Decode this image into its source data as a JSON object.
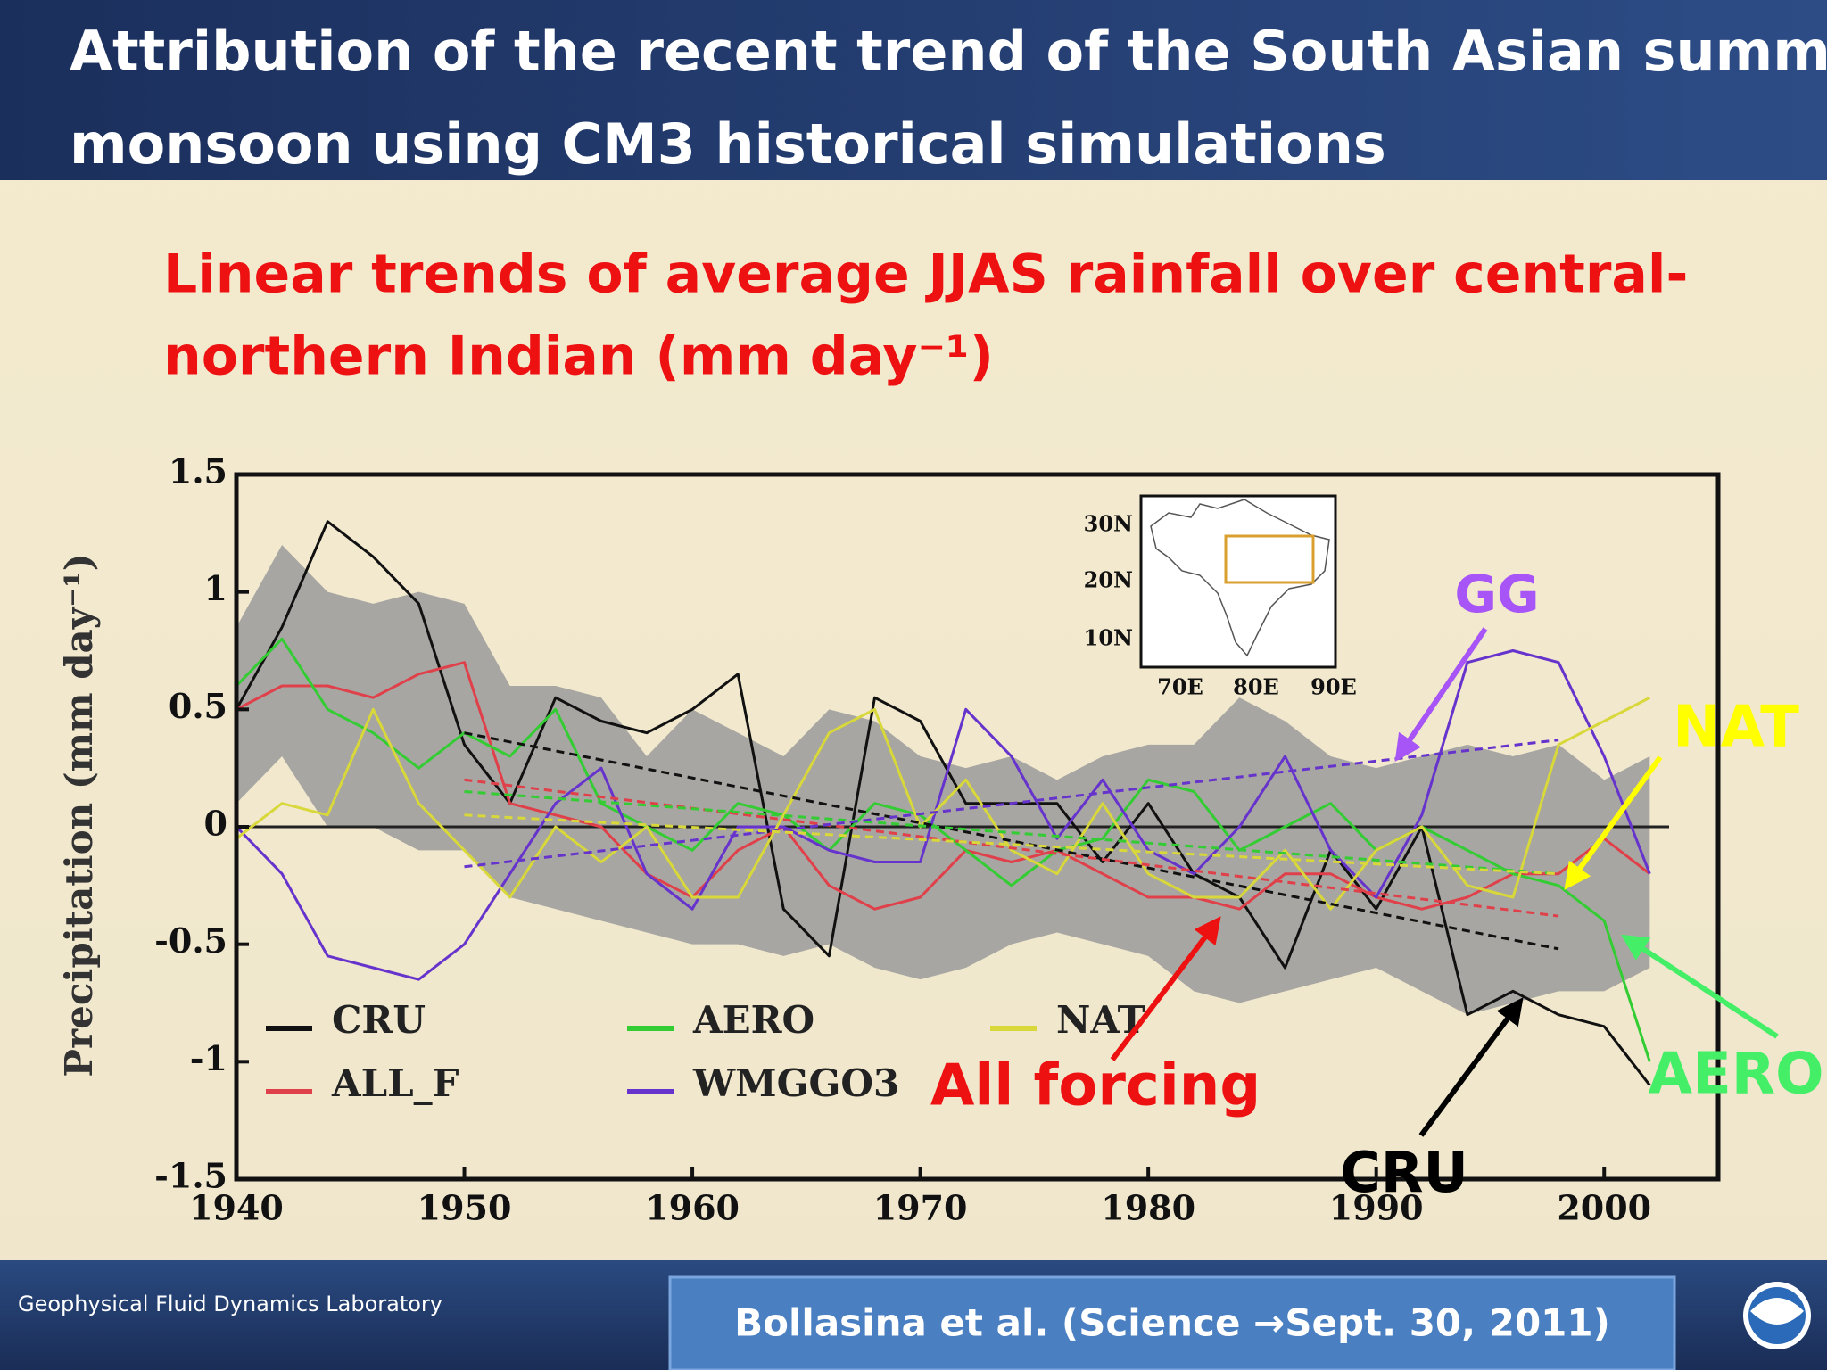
{
  "header": {
    "title_lines": [
      "Attribution of the recent trend of the South Asian summer",
      "monsoon using CM3 historical simulations"
    ]
  },
  "chart_data": {
    "type": "line",
    "title_lines": [
      "Linear trends of average JJAS rainfall over central-",
      "northern Indian (mm day⁻¹)"
    ],
    "ylabel": "Precipitation (mm day⁻¹)",
    "xlim": [
      1940,
      2005
    ],
    "ylim": [
      -1.5,
      1.5
    ],
    "xticks": [
      1940,
      1950,
      1960,
      1970,
      1980,
      1990,
      2000
    ],
    "yticks": [
      1.5,
      1,
      0.5,
      0,
      -0.5,
      -1,
      -1.5
    ],
    "x": [
      1940,
      1942,
      1944,
      1946,
      1948,
      1950,
      1952,
      1954,
      1956,
      1958,
      1960,
      1962,
      1964,
      1966,
      1968,
      1970,
      1972,
      1974,
      1976,
      1978,
      1980,
      1982,
      1984,
      1986,
      1988,
      1990,
      1992,
      1994,
      1996,
      1998,
      2000,
      2002
    ],
    "band": {
      "color": "#9a9a9a",
      "upper": [
        0.85,
        1.2,
        1.0,
        0.95,
        1.0,
        0.95,
        0.6,
        0.6,
        0.55,
        0.3,
        0.5,
        0.4,
        0.3,
        0.5,
        0.45,
        0.3,
        0.25,
        0.3,
        0.2,
        0.3,
        0.35,
        0.35,
        0.55,
        0.45,
        0.3,
        0.25,
        0.3,
        0.35,
        0.3,
        0.35,
        0.2,
        0.3
      ],
      "lower": [
        0.1,
        0.3,
        0.0,
        0.0,
        -0.1,
        -0.1,
        -0.3,
        -0.35,
        -0.4,
        -0.45,
        -0.5,
        -0.5,
        -0.55,
        -0.5,
        -0.6,
        -0.65,
        -0.6,
        -0.5,
        -0.45,
        -0.5,
        -0.55,
        -0.7,
        -0.75,
        -0.7,
        -0.65,
        -0.6,
        -0.7,
        -0.8,
        -0.75,
        -0.7,
        -0.7,
        -0.6
      ]
    },
    "trend_x": [
      1950,
      1998
    ],
    "series": [
      {
        "name": "CRU",
        "color": "#111111",
        "trend": [
          0.4,
          -0.52
        ],
        "values": [
          0.5,
          0.85,
          1.3,
          1.15,
          0.95,
          0.35,
          0.1,
          0.55,
          0.45,
          0.4,
          0.5,
          0.65,
          -0.35,
          -0.55,
          0.55,
          0.45,
          0.1,
          0.1,
          0.1,
          -0.15,
          0.1,
          -0.2,
          -0.3,
          -0.6,
          -0.1,
          -0.35,
          0.0,
          -0.8,
          -0.7,
          -0.8,
          -0.85,
          -1.1
        ]
      },
      {
        "name": "ALL_F",
        "color": "#e0404a",
        "trend": [
          0.2,
          -0.38
        ],
        "values": [
          0.5,
          0.6,
          0.6,
          0.55,
          0.65,
          0.7,
          0.1,
          0.05,
          0.0,
          -0.2,
          -0.3,
          -0.1,
          0.0,
          -0.25,
          -0.35,
          -0.3,
          -0.1,
          -0.15,
          -0.1,
          -0.2,
          -0.3,
          -0.3,
          -0.35,
          -0.2,
          -0.2,
          -0.3,
          -0.35,
          -0.3,
          -0.2,
          -0.2,
          -0.05,
          -0.2
        ]
      },
      {
        "name": "AERO",
        "color": "#33cc33",
        "trend": [
          0.15,
          -0.2
        ],
        "values": [
          0.6,
          0.8,
          0.5,
          0.4,
          0.25,
          0.4,
          0.3,
          0.5,
          0.1,
          0.0,
          -0.1,
          0.1,
          0.05,
          -0.1,
          0.1,
          0.05,
          -0.1,
          -0.25,
          -0.1,
          -0.05,
          0.2,
          0.15,
          -0.1,
          0.0,
          0.1,
          -0.1,
          0.0,
          -0.1,
          -0.2,
          -0.25,
          -0.4,
          -1.0
        ]
      },
      {
        "name": "WMGGO3",
        "color": "#6633cc",
        "trend": [
          -0.17,
          0.37
        ],
        "values": [
          0.0,
          -0.2,
          -0.55,
          -0.6,
          -0.65,
          -0.5,
          -0.2,
          0.1,
          0.25,
          -0.2,
          -0.35,
          0.0,
          0.0,
          -0.1,
          -0.15,
          -0.15,
          0.5,
          0.3,
          -0.05,
          0.2,
          -0.1,
          -0.2,
          0.0,
          0.3,
          -0.1,
          -0.3,
          0.05,
          0.7,
          0.75,
          0.7,
          0.3,
          -0.2
        ]
      },
      {
        "name": "NAT",
        "color": "#d8d83a",
        "trend": [
          0.05,
          -0.2
        ],
        "values": [
          -0.05,
          0.1,
          0.05,
          0.5,
          0.1,
          -0.1,
          -0.3,
          0.0,
          -0.15,
          0.0,
          -0.3,
          -0.3,
          0.05,
          0.4,
          0.5,
          0.0,
          0.2,
          -0.1,
          -0.2,
          0.1,
          -0.2,
          -0.3,
          -0.3,
          -0.1,
          -0.35,
          -0.1,
          0.0,
          -0.25,
          -0.3,
          0.35,
          0.45,
          0.55
        ]
      }
    ],
    "inset": {
      "lat_labels": [
        "30N",
        "20N",
        "10N"
      ],
      "lon_labels": [
        "70E",
        "80E",
        "90E"
      ]
    },
    "annotations": [
      {
        "text": "GG",
        "color": "#a855f7"
      },
      {
        "text": "NAT",
        "color": "#ffff00"
      },
      {
        "text": "AERO",
        "color": "#44ee66"
      },
      {
        "text": "All forcing",
        "color": "#ee1111"
      },
      {
        "text": "CRU",
        "color": "#000000"
      }
    ]
  },
  "footer": {
    "lab": "Geophysical Fluid Dynamics Laboratory",
    "citation": "Bollasina et al. (Science →Sept. 30, 2011)"
  }
}
